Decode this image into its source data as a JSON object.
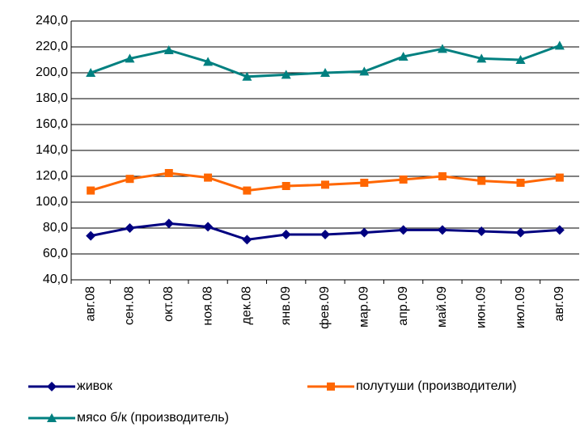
{
  "chart_data": {
    "type": "line",
    "categories": [
      "авг.08",
      "сен.08",
      "окт.08",
      "ноя.08",
      "дек.08",
      "янв.09",
      "фев.09",
      "мар.09",
      "апр.09",
      "май.09",
      "июн.09",
      "июл.09",
      "авг.09"
    ],
    "series": [
      {
        "name": "живок",
        "color": "#000080",
        "marker": "diamond",
        "values": [
          74,
          80,
          83.5,
          81,
          71,
          75,
          75,
          76.5,
          78.5,
          78.5,
          77.5,
          76.5,
          78.5
        ]
      },
      {
        "name": "полутуши (производители)",
        "color": "#ff6600",
        "marker": "square",
        "values": [
          109,
          118,
          122.5,
          119,
          109,
          112.5,
          113.5,
          115,
          117.5,
          120,
          116.5,
          115,
          119
        ]
      },
      {
        "name": "мясо б/к (производитель)",
        "color": "#008080",
        "marker": "triangle",
        "values": [
          200,
          211,
          217.5,
          208.5,
          197,
          198.5,
          200,
          201,
          212.5,
          218.5,
          211,
          210,
          221
        ]
      }
    ],
    "ylim": [
      40,
      240
    ],
    "yticks": [
      {
        "value": 40,
        "label": "40,0"
      },
      {
        "value": 60,
        "label": "60,0"
      },
      {
        "value": 80,
        "label": "80,0"
      },
      {
        "value": 100,
        "label": "100,0"
      },
      {
        "value": 120,
        "label": "120,0"
      },
      {
        "value": 140,
        "label": "140,0"
      },
      {
        "value": 160,
        "label": "160,0"
      },
      {
        "value": 180,
        "label": "180,0"
      },
      {
        "value": 200,
        "label": "200,0"
      },
      {
        "value": 220,
        "label": "220,0"
      },
      {
        "value": 240,
        "label": "240,0"
      }
    ],
    "grid": true
  }
}
